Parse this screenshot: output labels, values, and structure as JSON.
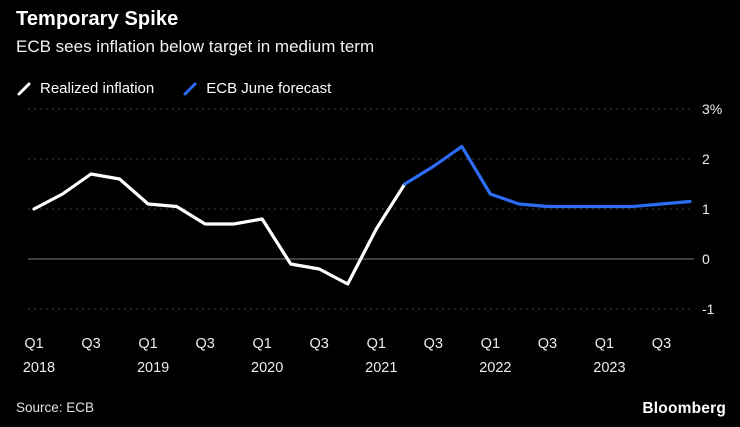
{
  "header": {
    "title": "Temporary Spike",
    "subtitle": "ECB sees inflation below target in medium term"
  },
  "legend": [
    {
      "label": "Realized inflation",
      "color": "#ffffff"
    },
    {
      "label": "ECB June forecast",
      "color": "#2d6cf6"
    }
  ],
  "footer": {
    "source": "Source: ECB",
    "brand": "Bloomberg"
  },
  "chart_data": {
    "type": "line",
    "title": "Temporary Spike",
    "subtitle": "ECB sees inflation below target in medium term",
    "unit": "%",
    "ylim": [
      -1,
      3
    ],
    "grid": true,
    "legend_position": "top-left",
    "x_count": 24,
    "x_ticks": [
      {
        "index": 0,
        "quarter": "Q1",
        "year": "2018"
      },
      {
        "index": 2,
        "quarter": "Q3"
      },
      {
        "index": 4,
        "quarter": "Q1",
        "year": "2019"
      },
      {
        "index": 6,
        "quarter": "Q3"
      },
      {
        "index": 8,
        "quarter": "Q1",
        "year": "2020"
      },
      {
        "index": 10,
        "quarter": "Q3"
      },
      {
        "index": 12,
        "quarter": "Q1",
        "year": "2021"
      },
      {
        "index": 14,
        "quarter": "Q3"
      },
      {
        "index": 16,
        "quarter": "Q1",
        "year": "2022"
      },
      {
        "index": 18,
        "quarter": "Q3"
      },
      {
        "index": 20,
        "quarter": "Q1",
        "year": "2023"
      },
      {
        "index": 22,
        "quarter": "Q3"
      }
    ],
    "y_ticks": [
      {
        "value": 3,
        "label": "3%"
      },
      {
        "value": 2,
        "label": "2"
      },
      {
        "value": 1,
        "label": "1"
      },
      {
        "value": 0,
        "label": "0"
      },
      {
        "value": -1,
        "label": "-1"
      }
    ],
    "colors": {
      "realized": "#ffffff",
      "forecast": "#2d6cf6",
      "grid": "#3f3f3f",
      "zero_line": "#7d7d7d"
    },
    "series": [
      {
        "name": "Realized inflation",
        "key": "realized-inflation-line",
        "color": "#ffffff",
        "start": 0,
        "values": [
          1.0,
          1.3,
          1.7,
          1.6,
          1.1,
          1.05,
          0.7,
          0.7,
          0.8,
          -0.1,
          -0.2,
          -0.5,
          0.6,
          1.5
        ]
      },
      {
        "name": "ECB June forecast",
        "key": "ecb-forecast-line",
        "color": "#2d6cf6",
        "start": 13,
        "values": [
          1.5,
          1.85,
          2.25,
          1.3,
          1.1,
          1.05,
          1.05,
          1.05,
          1.05,
          1.1,
          1.15
        ]
      }
    ]
  }
}
